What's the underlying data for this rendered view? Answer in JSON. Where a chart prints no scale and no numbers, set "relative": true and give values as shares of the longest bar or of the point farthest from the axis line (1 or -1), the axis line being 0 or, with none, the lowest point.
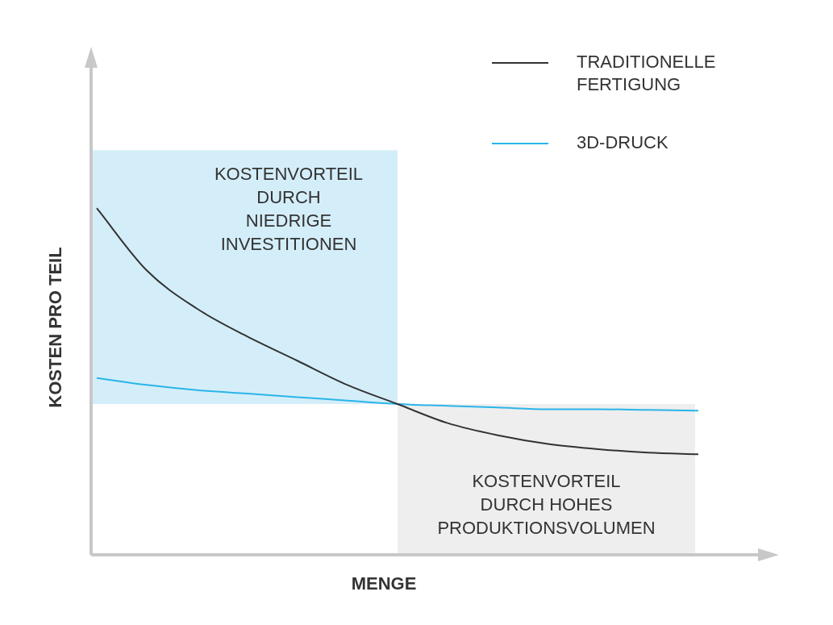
{
  "chart_data": {
    "type": "line",
    "relative": true,
    "xlabel": "MENGE",
    "ylabel": "KOSTEN PRO TEIL",
    "categories": [
      null,
      null,
      null,
      null,
      null,
      null,
      null,
      null,
      null,
      null,
      null,
      null,
      null
    ],
    "series": [
      {
        "name": "TRADITIONELLE FERTIGUNG",
        "color": "#333333",
        "values": [
          1.0,
          0.82,
          0.71,
          0.63,
          0.56,
          0.49,
          0.435,
          0.38,
          0.345,
          0.32,
          0.305,
          0.295,
          0.29
        ]
      },
      {
        "name": "3D-DRUCK",
        "color": "#29b5e8",
        "values": [
          0.51,
          0.49,
          0.475,
          0.465,
          0.455,
          0.445,
          0.435,
          0.43,
          0.425,
          0.42,
          0.42,
          0.418,
          0.416
        ]
      }
    ],
    "bands": [
      {
        "axis": "y",
        "from": 0.435,
        "to": 1.167,
        "color": "#d4eef9"
      },
      {
        "axis": "y",
        "from": 0,
        "to": 0.435,
        "color": "#eeeeee"
      }
    ],
    "annotations": [
      "KOSTENVORTEIL\nDURCH\nNIEDRIGE\nINVESTITIONEN",
      "KOSTENVORTEIL\nDURCH HOHES\nPRODUKTIONSVOLUMEN"
    ],
    "legend": "top right",
    "marker": "none",
    "line_style": "solid"
  }
}
